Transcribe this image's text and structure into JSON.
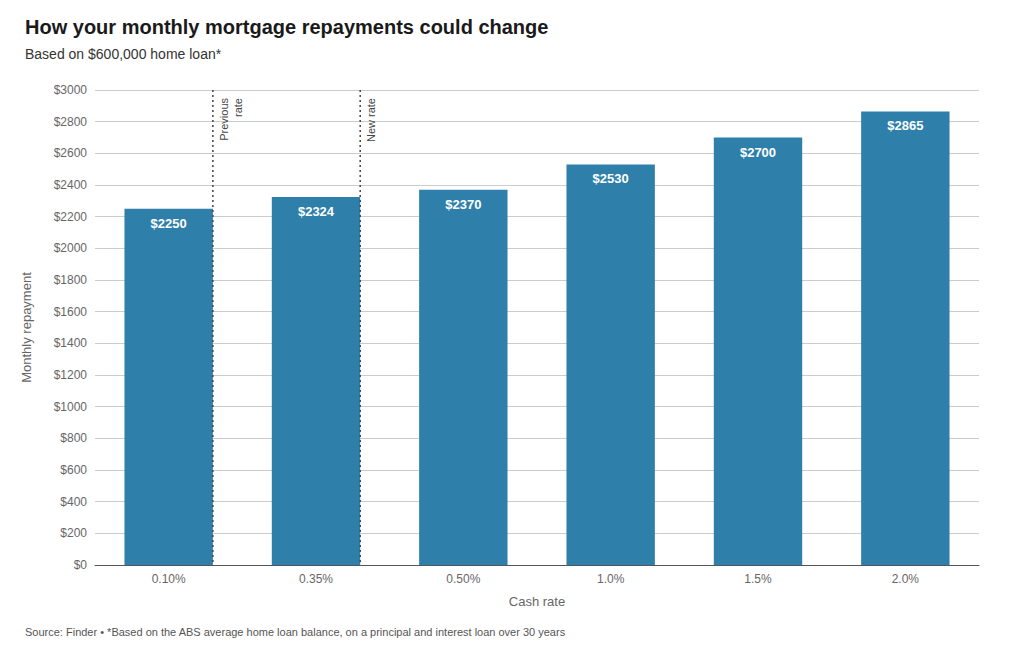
{
  "chart_data": {
    "type": "bar",
    "title": "How your monthly mortgage repayments could change",
    "subtitle": "Based on $600,000 home loan*",
    "xlabel": "Cash rate",
    "ylabel": "Monthly repayment",
    "footnote": "Source: Finder • *Based on the ABS average home loan balance, on a principal and interest loan over 30 years",
    "categories": [
      "0.10%",
      "0.35%",
      "0.50%",
      "1.0%",
      "1.5%",
      "2.0%"
    ],
    "values": [
      2250,
      2324,
      2370,
      2530,
      2700,
      2865
    ],
    "value_labels": [
      "$2250",
      "$2324",
      "$2370",
      "$2530",
      "$2700",
      "$2865"
    ],
    "color": "#2e7faa",
    "ylim": [
      0,
      3000
    ],
    "yticks": [
      {
        "value": 0,
        "label": "$0"
      },
      {
        "value": 200,
        "label": "$200"
      },
      {
        "value": 400,
        "label": "$400"
      },
      {
        "value": 600,
        "label": "$600"
      },
      {
        "value": 800,
        "label": "$800"
      },
      {
        "value": 1000,
        "label": "$1000"
      },
      {
        "value": 1200,
        "label": "$1200"
      },
      {
        "value": 1400,
        "label": "$1400"
      },
      {
        "value": 1600,
        "label": "$1600"
      },
      {
        "value": 1800,
        "label": "$1800"
      },
      {
        "value": 2000,
        "label": "$2000"
      },
      {
        "value": 2200,
        "label": "$2200"
      },
      {
        "value": 2400,
        "label": "$2400"
      },
      {
        "value": 2600,
        "label": "$2600"
      },
      {
        "value": 2800,
        "label": "$2800"
      },
      {
        "value": 3000,
        "label": "$3000"
      }
    ],
    "grid": true,
    "annotations": [
      {
        "text": "Previous\nrate",
        "x": "0.10%"
      },
      {
        "text": "New rate",
        "x": "0.35%"
      }
    ]
  }
}
